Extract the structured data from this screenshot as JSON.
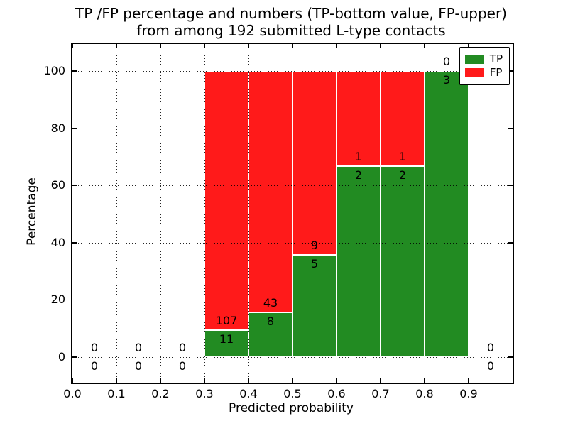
{
  "chart_data": {
    "type": "bar",
    "subtype": "stacked-100-percent",
    "title_lines": [
      "TP /FP percentage and numbers (TP-bottom value, FP-upper)",
      "from among 192 submitted L-type contacts"
    ],
    "xlabel": "Predicted probability",
    "ylabel": "Percentage",
    "xlim": [
      0.0,
      1.0
    ],
    "ylim": [
      -10,
      110
    ],
    "x_ticks": [
      0.0,
      0.1,
      0.2,
      0.3,
      0.4,
      0.5,
      0.6,
      0.7,
      0.8,
      0.9
    ],
    "x_tick_labels": [
      "0.0",
      "0.1",
      "0.2",
      "0.3",
      "0.4",
      "0.5",
      "0.6",
      "0.7",
      "0.8",
      "0.9"
    ],
    "y_ticks": [
      0,
      20,
      40,
      60,
      80,
      100
    ],
    "y_tick_labels": [
      "0",
      "20",
      "40",
      "60",
      "80",
      "100"
    ],
    "grid": "dotted",
    "legend_position": "upper right",
    "series": [
      {
        "name": "TP",
        "color": "#228b22"
      },
      {
        "name": "FP",
        "color": "#ff1a1a"
      }
    ],
    "bins": [
      {
        "x_start": 0.0,
        "x_end": 0.1,
        "tp": 0,
        "fp": 0
      },
      {
        "x_start": 0.1,
        "x_end": 0.2,
        "tp": 0,
        "fp": 0
      },
      {
        "x_start": 0.2,
        "x_end": 0.3,
        "tp": 0,
        "fp": 0
      },
      {
        "x_start": 0.3,
        "x_end": 0.4,
        "tp": 11,
        "fp": 107
      },
      {
        "x_start": 0.4,
        "x_end": 0.5,
        "tp": 8,
        "fp": 43
      },
      {
        "x_start": 0.5,
        "x_end": 0.6,
        "tp": 5,
        "fp": 9
      },
      {
        "x_start": 0.6,
        "x_end": 0.7,
        "tp": 2,
        "fp": 1
      },
      {
        "x_start": 0.7,
        "x_end": 0.8,
        "tp": 2,
        "fp": 1
      },
      {
        "x_start": 0.8,
        "x_end": 0.9,
        "tp": 3,
        "fp": 0
      },
      {
        "x_start": 0.9,
        "x_end": 1.0,
        "tp": 0,
        "fp": 0
      }
    ],
    "n_total": 192
  }
}
